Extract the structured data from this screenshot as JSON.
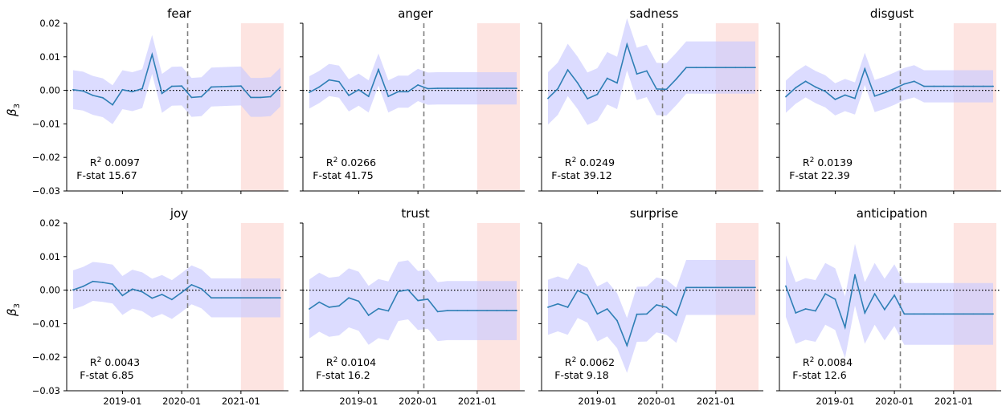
{
  "figure": {
    "ylabel": "β",
    "ylabel_sub": "3",
    "x_tick_labels": [
      "2019-01",
      "2020-01",
      "2021-01"
    ],
    "y_tick_labels": [
      "0.02",
      "0.01",
      "0.00",
      "−0.01",
      "−0.02",
      "−0.03"
    ]
  },
  "chart_data": [
    {
      "type": "line",
      "title": "fear",
      "r2": "0.0097",
      "fstat": "15.67",
      "x": [
        "2018-03",
        "2018-05",
        "2018-07",
        "2018-09",
        "2018-11",
        "2019-01",
        "2019-03",
        "2019-05",
        "2019-07",
        "2019-09",
        "2019-11",
        "2020-01",
        "2020-03",
        "2020-05",
        "2020-07",
        "2020-09",
        "2020-11",
        "2021-01",
        "2021-03",
        "2021-05",
        "2021-07",
        "2021-09"
      ],
      "y": [
        0.0002,
        -0.0002,
        -0.0015,
        -0.0022,
        -0.0043,
        0.0002,
        -0.0004,
        0.0005,
        0.0107,
        -0.0009,
        0.0012,
        0.0013,
        -0.0021,
        -0.0019,
        0.001,
        0.0011,
        0.0012,
        0.0013,
        -0.0021,
        -0.0021,
        -0.0019,
        0.001
      ],
      "ci_half_width": 0.0058,
      "ylim": [
        -0.03,
        0.02
      ]
    },
    {
      "type": "line",
      "title": "anger",
      "r2": "0.0266",
      "fstat": "41.75",
      "x": [
        "2018-03",
        "2018-05",
        "2018-07",
        "2018-09",
        "2018-11",
        "2019-01",
        "2019-03",
        "2019-05",
        "2019-07",
        "2019-09",
        "2019-11",
        "2020-01",
        "2020-03",
        "2020-05",
        "2020-07",
        "2020-09",
        "2020-11",
        "2021-01",
        "2021-03",
        "2021-05",
        "2021-07",
        "2021-09"
      ],
      "y": [
        -0.0006,
        0.001,
        0.0031,
        0.0026,
        -0.0015,
        0.0002,
        -0.0018,
        0.0062,
        -0.0018,
        -0.0004,
        -0.0004,
        0.0016,
        0.0005,
        0.0006,
        0.0006,
        0.0006,
        0.0006,
        0.0006,
        0.0006,
        0.0006,
        0.0006,
        0.0006
      ],
      "ci_half_width": 0.0048,
      "ylim": [
        -0.03,
        0.02
      ]
    },
    {
      "type": "line",
      "title": "sadness",
      "r2": "0.0249",
      "fstat": "39.12",
      "x": [
        "2018-03",
        "2018-05",
        "2018-07",
        "2018-09",
        "2018-11",
        "2019-01",
        "2019-03",
        "2019-05",
        "2019-07",
        "2019-09",
        "2019-11",
        "2020-01",
        "2020-03",
        "2020-05",
        "2020-07",
        "2020-09",
        "2020-11",
        "2021-01",
        "2021-03",
        "2021-05",
        "2021-07",
        "2021-09"
      ],
      "y": [
        -0.0024,
        0.0005,
        0.0061,
        0.0022,
        -0.0025,
        -0.0012,
        0.0036,
        0.0022,
        0.0137,
        0.0049,
        0.0058,
        0.0004,
        0.0003,
        0.0034,
        0.0068,
        0.0068,
        0.0068,
        0.0068,
        0.0068,
        0.0068,
        0.0068,
        0.0068
      ],
      "ci_half_width": 0.0078,
      "ylim": [
        -0.03,
        0.02
      ]
    },
    {
      "type": "line",
      "title": "disgust",
      "r2": "0.0139",
      "fstat": "22.39",
      "x": [
        "2018-03",
        "2018-05",
        "2018-07",
        "2018-09",
        "2018-11",
        "2019-01",
        "2019-03",
        "2019-05",
        "2019-07",
        "2019-09",
        "2019-11",
        "2020-01",
        "2020-03",
        "2020-05",
        "2020-07",
        "2020-09",
        "2020-11",
        "2021-01",
        "2021-03",
        "2021-05",
        "2021-07",
        "2021-09"
      ],
      "y": [
        -0.0019,
        0.0008,
        0.0027,
        0.001,
        -0.0003,
        -0.0027,
        -0.0014,
        -0.0024,
        0.0064,
        -0.0017,
        -0.0007,
        0.0005,
        0.0019,
        0.0027,
        0.0012,
        0.0012,
        0.0012,
        0.0012,
        0.0012,
        0.0012,
        0.0012,
        0.0012
      ],
      "ci_half_width": 0.0048,
      "ylim": [
        -0.03,
        0.02
      ]
    },
    {
      "type": "line",
      "title": "joy",
      "r2": "0.0043",
      "fstat": "6.85",
      "x": [
        "2018-03",
        "2018-05",
        "2018-07",
        "2018-09",
        "2018-11",
        "2019-01",
        "2019-03",
        "2019-05",
        "2019-07",
        "2019-09",
        "2019-11",
        "2020-01",
        "2020-03",
        "2020-05",
        "2020-07",
        "2020-09",
        "2020-11",
        "2021-01",
        "2021-03",
        "2021-05",
        "2021-07",
        "2021-09"
      ],
      "y": [
        0.0001,
        0.0011,
        0.0026,
        0.0023,
        0.0018,
        -0.0016,
        0.0003,
        -0.0005,
        -0.0024,
        -0.0013,
        -0.0028,
        -0.0007,
        0.0016,
        0.0004,
        -0.0023,
        -0.0023,
        -0.0023,
        -0.0023,
        -0.0023,
        -0.0023,
        -0.0023,
        -0.0023
      ],
      "ci_half_width": 0.0058,
      "ylim": [
        -0.03,
        0.02
      ]
    },
    {
      "type": "line",
      "title": "trust",
      "r2": "0.0104",
      "fstat": "16.2",
      "x": [
        "2018-03",
        "2018-05",
        "2018-07",
        "2018-09",
        "2018-11",
        "2019-01",
        "2019-03",
        "2019-05",
        "2019-07",
        "2019-09",
        "2019-11",
        "2020-01",
        "2020-03",
        "2020-05",
        "2020-07",
        "2020-09",
        "2020-11",
        "2021-01",
        "2021-03",
        "2021-05",
        "2021-07",
        "2021-09"
      ],
      "y": [
        -0.0056,
        -0.0036,
        -0.0051,
        -0.0047,
        -0.0023,
        -0.0033,
        -0.0075,
        -0.0055,
        -0.0062,
        -0.0004,
        0.0001,
        -0.0031,
        -0.0027,
        -0.0064,
        -0.0061,
        -0.0061,
        -0.0061,
        -0.0061,
        -0.0061,
        -0.0061,
        -0.0061,
        -0.0061
      ],
      "ci_half_width": 0.0088,
      "ylim": [
        -0.03,
        0.02
      ]
    },
    {
      "type": "line",
      "title": "surprise",
      "r2": "0.0062",
      "fstat": "9.18",
      "x": [
        "2018-03",
        "2018-05",
        "2018-07",
        "2018-09",
        "2018-11",
        "2019-01",
        "2019-03",
        "2019-05",
        "2019-07",
        "2019-09",
        "2019-11",
        "2020-01",
        "2020-03",
        "2020-05",
        "2020-07",
        "2020-09",
        "2020-11",
        "2021-01",
        "2021-03",
        "2021-05",
        "2021-07",
        "2021-09"
      ],
      "y": [
        -0.0051,
        -0.0041,
        -0.0051,
        -0.0001,
        -0.0015,
        -0.0071,
        -0.0056,
        -0.0091,
        -0.0165,
        -0.0072,
        -0.0071,
        -0.0044,
        -0.0051,
        -0.0075,
        0.0008,
        0.0008,
        0.0008,
        0.0008,
        0.0008,
        0.0008,
        0.0008,
        0.0008
      ],
      "ci_half_width": 0.0082,
      "ylim": [
        -0.03,
        0.02
      ]
    },
    {
      "type": "line",
      "title": "anticipation",
      "r2": "0.0084",
      "fstat": "12.6",
      "x": [
        "2018-03",
        "2018-05",
        "2018-07",
        "2018-09",
        "2018-11",
        "2019-01",
        "2019-03",
        "2019-05",
        "2019-07",
        "2019-09",
        "2019-11",
        "2020-01",
        "2020-03",
        "2020-05",
        "2020-07",
        "2020-09",
        "2020-11",
        "2021-01",
        "2021-03",
        "2021-05",
        "2021-07",
        "2021-09"
      ],
      "y": [
        0.0012,
        -0.0068,
        -0.0056,
        -0.0062,
        -0.0011,
        -0.0027,
        -0.0111,
        0.0046,
        -0.0068,
        -0.0011,
        -0.0058,
        -0.0015,
        -0.0071,
        -0.0071,
        -0.0071,
        -0.0071,
        -0.0071,
        -0.0071,
        -0.0071,
        -0.0071,
        -0.0071,
        -0.0071
      ],
      "ci_half_width": 0.0092,
      "ylim": [
        -0.03,
        0.02
      ]
    }
  ],
  "colors": {
    "line": "#2f7fb5",
    "band": "#c9c9ff",
    "shade": "#fde4e1",
    "vline": "#808080",
    "zero_line": "#000000"
  }
}
